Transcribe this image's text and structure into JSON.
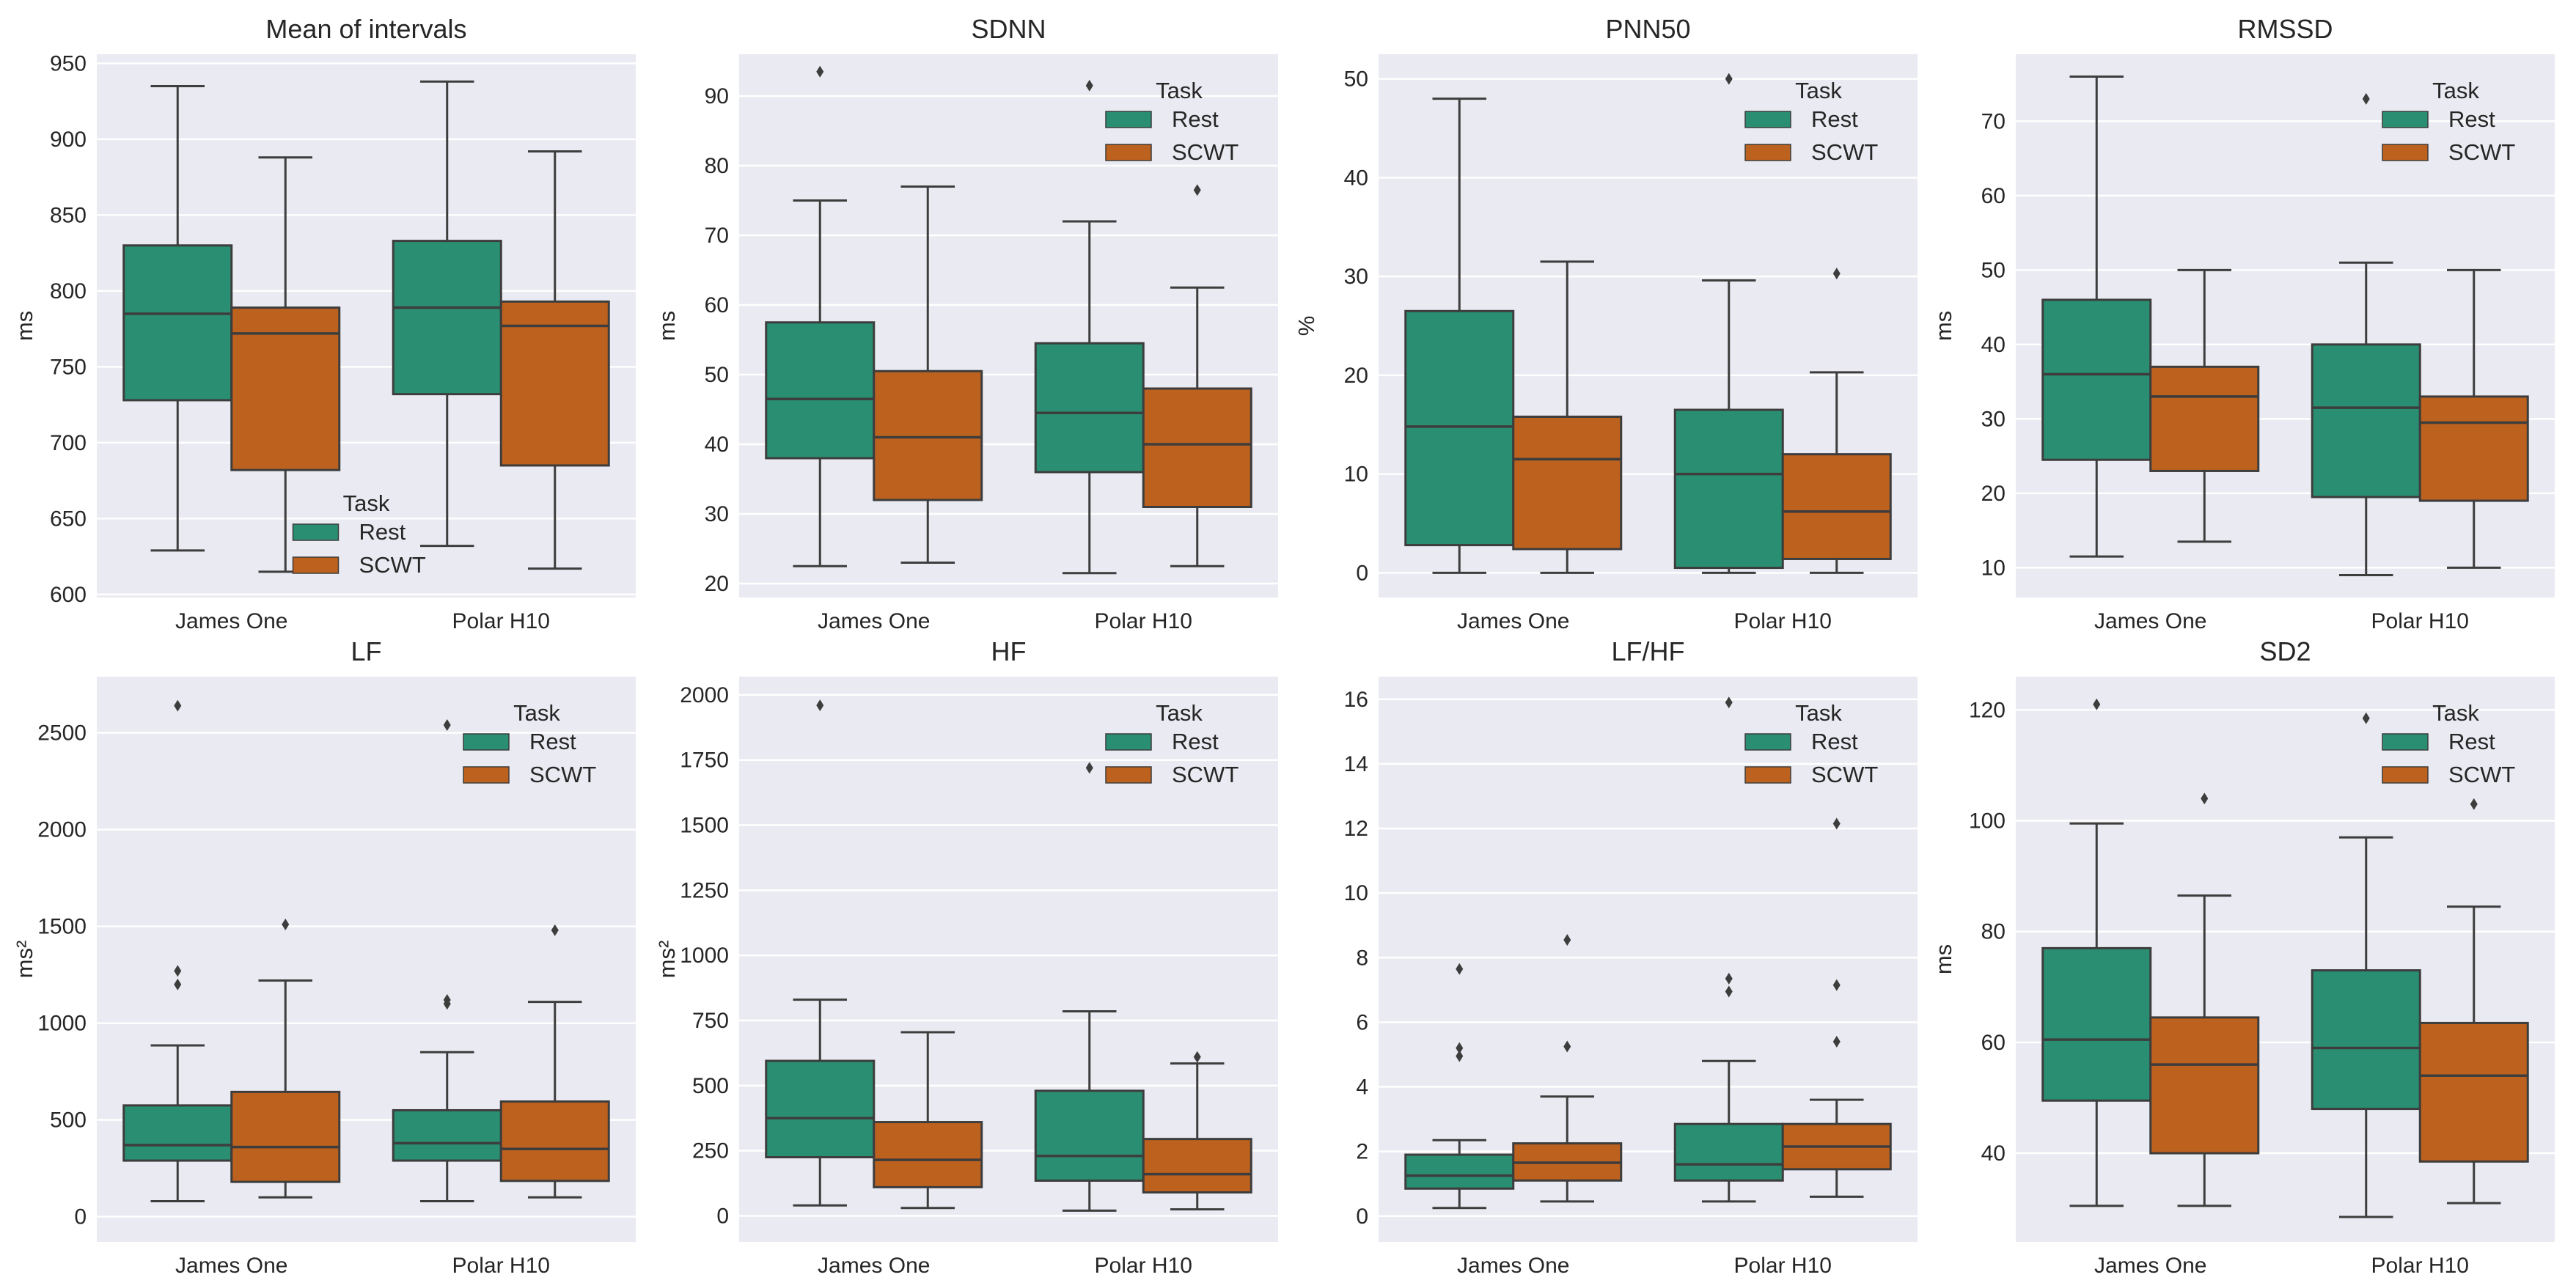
{
  "chart_data": [
    {
      "type": "box",
      "title": "Mean of intervals",
      "ylabel": "ms",
      "ylim": [
        598,
        956
      ],
      "yticks": [
        600,
        650,
        700,
        750,
        800,
        850,
        900,
        950
      ],
      "legend": "lower-center",
      "categories": [
        "James One",
        "Polar H10"
      ],
      "hue": [
        "Rest",
        "SCWT"
      ],
      "boxes": [
        [
          {
            "whislo": 629,
            "q1": 728,
            "med": 785,
            "q3": 830,
            "whishi": 935,
            "fliers": []
          },
          {
            "whislo": 615,
            "q1": 682,
            "med": 772,
            "q3": 789,
            "whishi": 888,
            "fliers": []
          }
        ],
        [
          {
            "whislo": 632,
            "q1": 732,
            "med": 789,
            "q3": 833,
            "whishi": 938,
            "fliers": []
          },
          {
            "whislo": 617,
            "q1": 685,
            "med": 777,
            "q3": 793,
            "whishi": 892,
            "fliers": []
          }
        ]
      ]
    },
    {
      "type": "box",
      "title": "SDNN",
      "ylabel": "ms",
      "ylim": [
        18,
        96
      ],
      "yticks": [
        20,
        30,
        40,
        50,
        60,
        70,
        80,
        90
      ],
      "legend": "upper-right",
      "categories": [
        "James One",
        "Polar H10"
      ],
      "hue": [
        "Rest",
        "SCWT"
      ],
      "boxes": [
        [
          {
            "whislo": 22.5,
            "q1": 38,
            "med": 46.5,
            "q3": 57.5,
            "whishi": 75,
            "fliers": [
              93.5
            ]
          },
          {
            "whislo": 23,
            "q1": 32,
            "med": 41,
            "q3": 50.5,
            "whishi": 77,
            "fliers": []
          }
        ],
        [
          {
            "whislo": 21.5,
            "q1": 36,
            "med": 44.5,
            "q3": 54.5,
            "whishi": 72,
            "fliers": [
              91.5
            ]
          },
          {
            "whislo": 22.5,
            "q1": 31,
            "med": 40,
            "q3": 48,
            "whishi": 62.5,
            "fliers": [
              76.5
            ]
          }
        ]
      ]
    },
    {
      "type": "box",
      "title": "PNN50",
      "ylabel": "%",
      "ylim": [
        -2.5,
        52.5
      ],
      "yticks": [
        0,
        10,
        20,
        30,
        40,
        50
      ],
      "legend": "upper-right",
      "categories": [
        "James One",
        "Polar H10"
      ],
      "hue": [
        "Rest",
        "SCWT"
      ],
      "boxes": [
        [
          {
            "whislo": 0,
            "q1": 2.8,
            "med": 14.8,
            "q3": 26.5,
            "whishi": 48,
            "fliers": []
          },
          {
            "whislo": 0,
            "q1": 2.4,
            "med": 11.5,
            "q3": 15.8,
            "whishi": 31.5,
            "fliers": []
          }
        ],
        [
          {
            "whislo": 0,
            "q1": 0.5,
            "med": 10,
            "q3": 16.5,
            "whishi": 29.6,
            "fliers": [
              50
            ]
          },
          {
            "whislo": 0,
            "q1": 1.4,
            "med": 6.2,
            "q3": 12,
            "whishi": 20.3,
            "fliers": [
              30.3
            ]
          }
        ]
      ]
    },
    {
      "type": "box",
      "title": "RMSSD",
      "ylabel": "ms",
      "ylim": [
        6,
        79
      ],
      "yticks": [
        10,
        20,
        30,
        40,
        50,
        60,
        70
      ],
      "legend": "upper-right",
      "categories": [
        "James One",
        "Polar H10"
      ],
      "hue": [
        "Rest",
        "SCWT"
      ],
      "boxes": [
        [
          {
            "whislo": 11.5,
            "q1": 24.5,
            "med": 36,
            "q3": 46,
            "whishi": 76,
            "fliers": []
          },
          {
            "whislo": 13.5,
            "q1": 23,
            "med": 33,
            "q3": 37,
            "whishi": 50,
            "fliers": []
          }
        ],
        [
          {
            "whislo": 9,
            "q1": 19.5,
            "med": 31.5,
            "q3": 40,
            "whishi": 51,
            "fliers": [
              73
            ]
          },
          {
            "whislo": 10,
            "q1": 19,
            "med": 29.5,
            "q3": 33,
            "whishi": 50,
            "fliers": []
          }
        ]
      ]
    },
    {
      "type": "box",
      "title": "LF",
      "ylabel": "ms²",
      "ylim": [
        -130,
        2790
      ],
      "yticks": [
        0,
        500,
        1000,
        1500,
        2000,
        2500
      ],
      "legend": "upper-right",
      "categories": [
        "James One",
        "Polar H10"
      ],
      "hue": [
        "Rest",
        "SCWT"
      ],
      "boxes": [
        [
          {
            "whislo": 80,
            "q1": 290,
            "med": 370,
            "q3": 575,
            "whishi": 885,
            "fliers": [
              2640,
              1270,
              1200
            ]
          },
          {
            "whislo": 100,
            "q1": 180,
            "med": 360,
            "q3": 645,
            "whishi": 1220,
            "fliers": [
              1510
            ]
          }
        ],
        [
          {
            "whislo": 80,
            "q1": 290,
            "med": 380,
            "q3": 550,
            "whishi": 850,
            "fliers": [
              2540,
              1120,
              1100
            ]
          },
          {
            "whislo": 100,
            "q1": 185,
            "med": 350,
            "q3": 595,
            "whishi": 1110,
            "fliers": [
              1480
            ]
          }
        ]
      ]
    },
    {
      "type": "box",
      "title": "HF",
      "ylabel": "ms²",
      "ylim": [
        -100,
        2070
      ],
      "yticks": [
        0,
        250,
        500,
        750,
        1000,
        1250,
        1500,
        1750,
        2000
      ],
      "legend": "upper-right",
      "categories": [
        "James One",
        "Polar H10"
      ],
      "hue": [
        "Rest",
        "SCWT"
      ],
      "boxes": [
        [
          {
            "whislo": 40,
            "q1": 225,
            "med": 375,
            "q3": 595,
            "whishi": 830,
            "fliers": [
              1960
            ]
          },
          {
            "whislo": 30,
            "q1": 110,
            "med": 215,
            "q3": 360,
            "whishi": 705,
            "fliers": []
          }
        ],
        [
          {
            "whislo": 20,
            "q1": 135,
            "med": 230,
            "q3": 480,
            "whishi": 785,
            "fliers": [
              1720
            ]
          },
          {
            "whislo": 25,
            "q1": 90,
            "med": 160,
            "q3": 295,
            "whishi": 585,
            "fliers": [
              610
            ]
          }
        ]
      ]
    },
    {
      "type": "box",
      "title": "LF/HF",
      "ylabel": "",
      "ylim": [
        -0.8,
        16.7
      ],
      "yticks": [
        0,
        2,
        4,
        6,
        8,
        10,
        12,
        14,
        16
      ],
      "legend": "upper-right",
      "categories": [
        "James One",
        "Polar H10"
      ],
      "hue": [
        "Rest",
        "SCWT"
      ],
      "boxes": [
        [
          {
            "whislo": 0.25,
            "q1": 0.85,
            "med": 1.25,
            "q3": 1.9,
            "whishi": 2.35,
            "fliers": [
              7.65,
              5.2,
              4.95
            ]
          },
          {
            "whislo": 0.45,
            "q1": 1.1,
            "med": 1.65,
            "q3": 2.25,
            "whishi": 3.7,
            "fliers": [
              8.55,
              5.25
            ]
          }
        ],
        [
          {
            "whislo": 0.45,
            "q1": 1.1,
            "med": 1.6,
            "q3": 2.85,
            "whishi": 4.8,
            "fliers": [
              15.9,
              7.35,
              6.95
            ]
          },
          {
            "whislo": 0.6,
            "q1": 1.45,
            "med": 2.15,
            "q3": 2.85,
            "whishi": 3.6,
            "fliers": [
              12.15,
              7.15,
              5.4
            ]
          }
        ]
      ]
    },
    {
      "type": "box",
      "title": "SD2",
      "ylabel": "ms",
      "ylim": [
        24,
        126
      ],
      "yticks": [
        40,
        60,
        80,
        100,
        120
      ],
      "legend": "upper-right",
      "categories": [
        "James One",
        "Polar H10"
      ],
      "hue": [
        "Rest",
        "SCWT"
      ],
      "boxes": [
        [
          {
            "whislo": 30.5,
            "q1": 49.5,
            "med": 60.5,
            "q3": 77,
            "whishi": 99.5,
            "fliers": [
              121
            ]
          },
          {
            "whislo": 30.5,
            "q1": 40,
            "med": 56,
            "q3": 64.5,
            "whishi": 86.5,
            "fliers": [
              104
            ]
          }
        ],
        [
          {
            "whislo": 28.5,
            "q1": 48,
            "med": 59,
            "q3": 73,
            "whishi": 97,
            "fliers": [
              118.5
            ]
          },
          {
            "whislo": 31,
            "q1": 38.5,
            "med": 54,
            "q3": 63.5,
            "whishi": 84.5,
            "fliers": [
              103
            ]
          }
        ]
      ]
    }
  ],
  "legend_title": "Task",
  "colors": {
    "Rest": "#2a8f72",
    "SCWT": "#bd611e",
    "axes_bg": "#eaeaf2",
    "grid": "#ffffff",
    "line": "#3d3d3d"
  }
}
